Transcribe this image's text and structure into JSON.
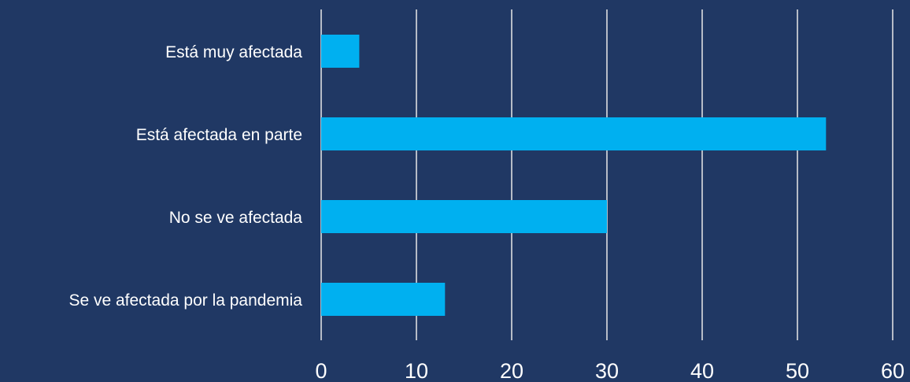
{
  "chart_data": {
    "type": "bar",
    "orientation": "horizontal",
    "categories": [
      "Está muy afectada",
      "Está afectada en parte",
      "No se ve afectada",
      "Se ve afectada por la pandemia"
    ],
    "values": [
      4,
      53,
      30,
      13
    ],
    "xlim": [
      0,
      60
    ],
    "x_ticks": [
      "0",
      "10",
      "20",
      "30",
      "40",
      "50",
      "60"
    ],
    "grid": "vertical",
    "legend": "none",
    "title": "",
    "xlabel": "",
    "ylabel": ""
  },
  "colors": {
    "background": "#203864",
    "bar": "#00b0f0",
    "grid": "#e8e8e8",
    "text": "#ffffff"
  }
}
